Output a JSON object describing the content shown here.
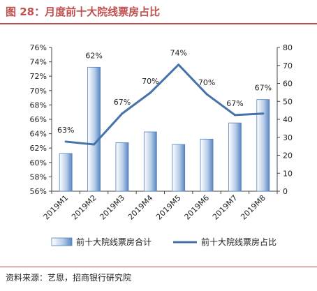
{
  "header": {
    "title": "图 28：月度前十大院线票房占比"
  },
  "source": "资料来源：艺恩，招商银行研究院",
  "chart_data": {
    "type": "bar+line",
    "categories": [
      "2019M1",
      "2019M2",
      "2019M3",
      "2019M4",
      "2019M5",
      "2019M6",
      "2019M7",
      "2019M8"
    ],
    "series": [
      {
        "name": "前十大院线票房合计",
        "type": "bar",
        "axis": "right",
        "values": [
          21,
          69,
          27,
          33,
          26,
          29,
          38,
          51
        ],
        "color": "#4f81bd"
      },
      {
        "name": "前十大院线票房占比",
        "type": "line",
        "axis": "left",
        "values": [
          62.9,
          62.5,
          66.8,
          69.7,
          73.6,
          69.5,
          66.6,
          66.8
        ],
        "data_labels": [
          "63%",
          "62%",
          "67%",
          "70%",
          "74%",
          "70%",
          "67%",
          "67%"
        ],
        "color": "#4672aa"
      }
    ],
    "y_left": {
      "ylim": [
        56,
        76
      ],
      "ticks": [
        "56%",
        "58%",
        "60%",
        "62%",
        "64%",
        "66%",
        "68%",
        "70%",
        "72%",
        "74%",
        "76%"
      ]
    },
    "y_right": {
      "ylim": [
        0,
        80
      ],
      "ticks": [
        "0",
        "10",
        "20",
        "30",
        "40",
        "50",
        "60",
        "70",
        "80"
      ]
    },
    "legend": "bottom"
  }
}
